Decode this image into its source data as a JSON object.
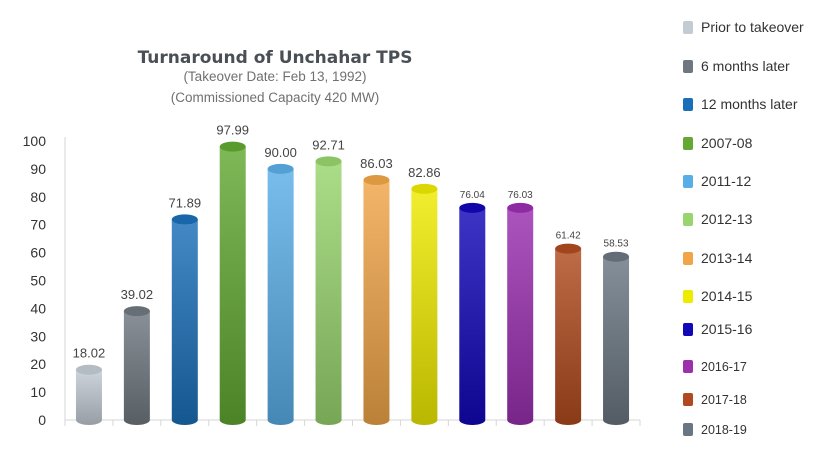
{
  "chart_data": {
    "type": "bar",
    "title": "Turnaround of Unchahar TPS",
    "subtitle": [
      "(Takeover Date: Feb 13, 1992)",
      "(Commissioned Capacity 420 MW)"
    ],
    "xlabel": "",
    "ylabel": "",
    "ylim": [
      0,
      100
    ],
    "yticks": [
      0,
      10,
      20,
      30,
      40,
      50,
      60,
      70,
      80,
      90,
      100
    ],
    "grid": false,
    "legend_position": "right",
    "bar_style": "3d-cylinder",
    "categories": [
      "Prior to takeover",
      "6 months later",
      "12 months later",
      "2007-08",
      "2011-12",
      "2012-13",
      "2013-14",
      "2014-15",
      "2015-16",
      "2016-17",
      "2017-18",
      "2018-19"
    ],
    "values": [
      18.02,
      39.02,
      71.89,
      97.99,
      90.0,
      92.71,
      86.03,
      82.86,
      76.04,
      76.03,
      61.42,
      58.53
    ],
    "value_labels": [
      "18.02",
      "39.02",
      "71.89",
      "97.99",
      "90.00",
      "92.71",
      "86.03",
      "82.86",
      "76.04",
      "76.03",
      "61.42",
      "58.53"
    ],
    "colors": [
      "#c3cbd4",
      "#6f7880",
      "#1b6fb8",
      "#62a832",
      "#5aaee8",
      "#98d56e",
      "#f0a548",
      "#eeea00",
      "#1208b8",
      "#9a2fb0",
      "#b04a1e",
      "#6a7682"
    ]
  }
}
